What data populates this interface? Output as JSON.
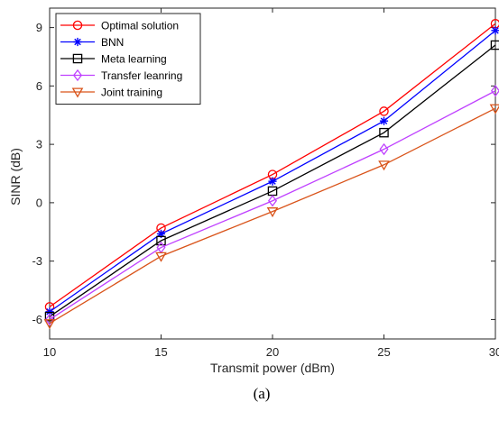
{
  "chart_data": {
    "type": "line",
    "title": "",
    "xlabel": "Transmit power (dBm)",
    "ylabel": "SINR (dB)",
    "caption": "(a)",
    "x": [
      10,
      15,
      20,
      25,
      30
    ],
    "xlim": [
      10,
      30
    ],
    "ylim": [
      -7,
      10
    ],
    "xticks": [
      "10",
      "15",
      "20",
      "25",
      "30"
    ],
    "yticks": [
      "-6",
      "-3",
      "0",
      "3",
      "6",
      "9"
    ],
    "ytick_values": [
      -6,
      -3,
      0,
      3,
      6,
      9
    ],
    "grid": false,
    "legend_position": "top-left",
    "series": [
      {
        "name": "Optimal solution",
        "color": "#ff0000",
        "marker": "circle",
        "values": [
          -5.35,
          -1.3,
          1.45,
          4.7,
          9.2
        ]
      },
      {
        "name": "BNN",
        "color": "#0000ff",
        "marker": "asterisk",
        "values": [
          -5.6,
          -1.6,
          1.1,
          4.2,
          8.85
        ]
      },
      {
        "name": "Meta learning",
        "color": "#000000",
        "marker": "square",
        "values": [
          -5.85,
          -1.95,
          0.6,
          3.6,
          8.1
        ]
      },
      {
        "name": "Transfer leanring",
        "color": "#bf40ff",
        "marker": "diamond",
        "values": [
          -6.0,
          -2.3,
          0.1,
          2.75,
          5.75
        ]
      },
      {
        "name": "Joint training",
        "color": "#d95319",
        "marker": "triangle-down",
        "values": [
          -6.2,
          -2.75,
          -0.45,
          1.95,
          4.85
        ]
      }
    ]
  }
}
